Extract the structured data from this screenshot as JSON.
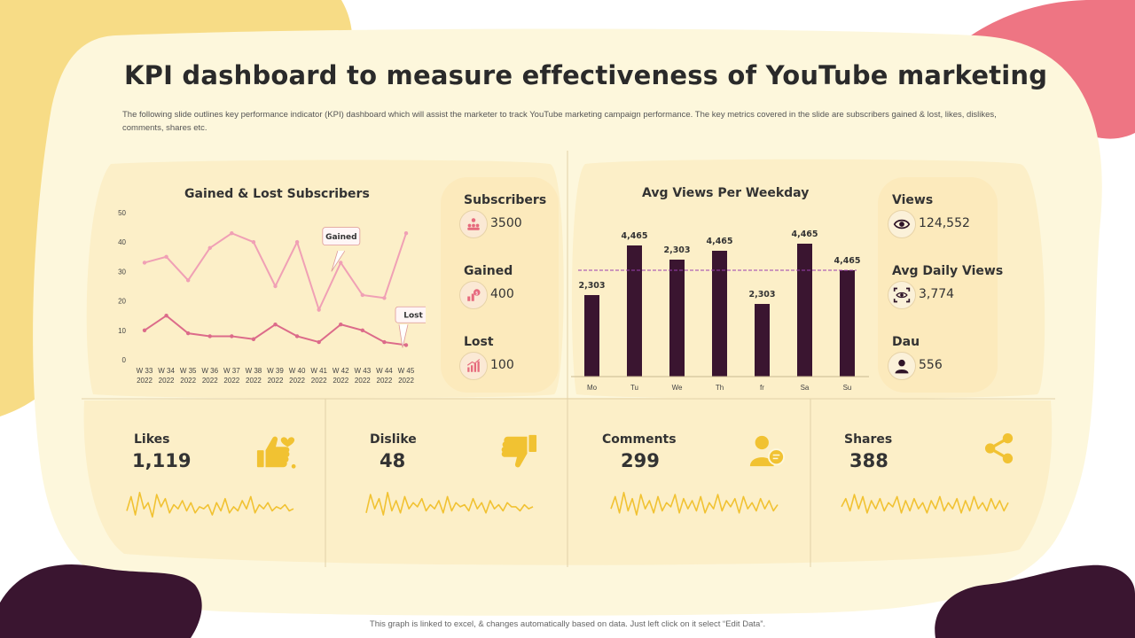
{
  "title": "KPI dashboard to measure effectiveness of YouTube marketing",
  "subtitle": "The following slide outlines key performance indicator (KPI) dashboard which will assist the marketer to track YouTube marketing campaign performance. The key metrics covered in the slide are subscribers gained & lost, likes, dislikes, comments, shares etc.",
  "colors": {
    "cream": "#fdf7dc",
    "panel": "#fcefc8",
    "yellow": "#f7dc86",
    "pink": "#ee7583",
    "plum": "#3a1530",
    "line_light": "#f0a0b5",
    "line_dark": "#dc6b8a",
    "sparkline": "#f1c232"
  },
  "subscribers_chart": {
    "title": "Gained & Lost Subscribers",
    "chart_data": {
      "type": "line",
      "categories": [
        "W 33\n2022",
        "W 34\n2022",
        "W 35\n2022",
        "W 36\n2022",
        "W 37\n2022",
        "W 38\n2022",
        "W 39\n2022",
        "W 40\n2022",
        "W 41\n2022",
        "W 42\n2022",
        "W 43\n2022",
        "W 44\n2022",
        "W 45\n2022"
      ],
      "ylim": [
        0,
        50
      ],
      "yticks": [
        "0",
        "10",
        "20",
        "30",
        "40",
        "50"
      ],
      "series": [
        {
          "name": "Gained",
          "values": [
            33,
            35,
            27,
            38,
            43,
            40,
            25,
            40,
            17,
            33,
            22,
            21,
            43
          ]
        },
        {
          "name": "Lost",
          "values": [
            10,
            15,
            9,
            8,
            8,
            7,
            12,
            8,
            6,
            12,
            10,
            6,
            5
          ]
        }
      ],
      "callouts": [
        "Gained",
        "Lost"
      ]
    }
  },
  "subscriber_metrics": [
    {
      "label": "Subscribers",
      "value": "3500",
      "icon": "users-icon"
    },
    {
      "label": "Gained",
      "value": "400",
      "icon": "growth-icon"
    },
    {
      "label": "Lost",
      "value": "100",
      "icon": "bar-chart-icon"
    }
  ],
  "views_chart": {
    "title": "Avg Views Per Weekday",
    "chart_data": {
      "type": "bar",
      "categories": [
        "Mo",
        "Tu",
        "We",
        "Th",
        "fr",
        "Sa",
        "Su"
      ],
      "values": [
        2303,
        4465,
        2303,
        4465,
        2303,
        4465,
        4465
      ],
      "labels": [
        "2,303",
        "4,465",
        "2,303",
        "4,465",
        "2,303",
        "4,465",
        "4,465"
      ],
      "bar_heights": [
        0.46,
        0.74,
        0.66,
        0.71,
        0.41,
        0.75,
        0.6
      ],
      "average_line": 0.6
    }
  },
  "views_metrics": [
    {
      "label": "Views",
      "value": "124,552",
      "icon": "eye-icon"
    },
    {
      "label": "Avg Daily Views",
      "value": "3,774",
      "icon": "eye-scan-icon"
    },
    {
      "label": "Dau",
      "value": "556",
      "icon": "person-icon"
    }
  ],
  "kpis": [
    {
      "label": "Likes",
      "value": "1,119",
      "icon": "thumbs-up-heart-icon",
      "spark": [
        5,
        12,
        3,
        14,
        6,
        9,
        2,
        13,
        7,
        11,
        4,
        8,
        6,
        10,
        5,
        9,
        4,
        7,
        6,
        8,
        3,
        9,
        5,
        11,
        4,
        7,
        5,
        10,
        6,
        12,
        4,
        8,
        6,
        9,
        5,
        7,
        6,
        8,
        5,
        6
      ]
    },
    {
      "label": "Dislike",
      "value": "48",
      "icon": "thumbs-down-icon",
      "spark": [
        4,
        13,
        6,
        11,
        3,
        14,
        5,
        10,
        4,
        12,
        6,
        9,
        7,
        11,
        5,
        8,
        6,
        10,
        4,
        12,
        5,
        9,
        7,
        8,
        5,
        11,
        6,
        9,
        4,
        10,
        6,
        8,
        5,
        9,
        7,
        7,
        5,
        8,
        6,
        7
      ]
    },
    {
      "label": "Comments",
      "value": "299",
      "icon": "comment-user-icon",
      "spark": [
        6,
        12,
        4,
        14,
        5,
        11,
        3,
        13,
        6,
        10,
        4,
        12,
        5,
        9,
        7,
        13,
        4,
        11,
        6,
        10,
        5,
        12,
        4,
        9,
        6,
        13,
        5,
        10,
        7,
        11,
        4,
        12,
        6,
        9,
        5,
        11,
        6,
        10,
        5,
        8
      ]
    },
    {
      "label": "Shares",
      "value": "388",
      "icon": "share-icon",
      "spark": [
        7,
        11,
        5,
        13,
        6,
        12,
        4,
        10,
        6,
        11,
        5,
        9,
        7,
        12,
        4,
        10,
        5,
        11,
        6,
        9,
        4,
        10,
        6,
        12,
        5,
        9,
        6,
        11,
        4,
        10,
        5,
        12,
        6,
        9,
        5,
        11,
        6,
        10,
        5,
        9
      ]
    }
  ],
  "footer": "This graph is linked to excel, & changes automatically based on data. Just left click on it select “Edit Data”."
}
